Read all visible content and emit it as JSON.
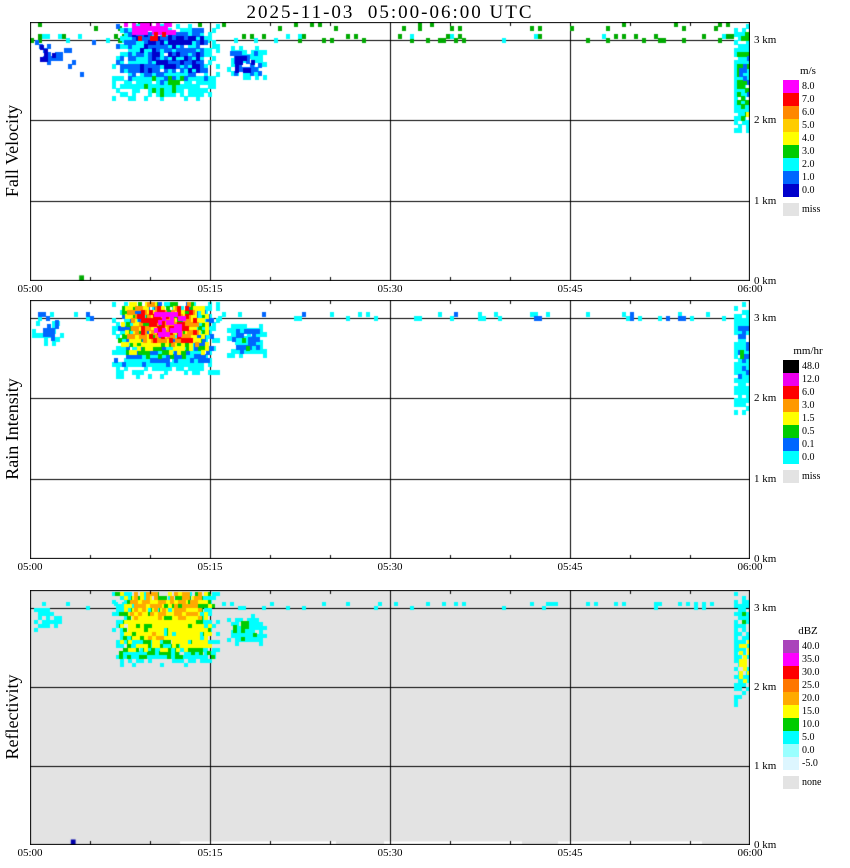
{
  "title": "2025-11-03  05:00-06:00 UTC",
  "chart_data": [
    {
      "type": "heatmap",
      "name": "fall-velocity",
      "ylabel": "Fall Velocity",
      "x_ticks": [
        "05:00",
        "05:15",
        "05:30",
        "05:45",
        "06:00"
      ],
      "x_tick_minutes": [
        0,
        15,
        30,
        45,
        60
      ],
      "x_range_minutes": [
        0,
        60
      ],
      "y_ticks": [
        "0 km",
        "1 km",
        "2 km",
        "3 km"
      ],
      "y_tick_km": [
        0,
        1,
        2,
        3
      ],
      "y_range_km": [
        0,
        3.22
      ],
      "grid": {
        "x_minutes": [
          15,
          30,
          45
        ],
        "y_km": [
          1,
          2,
          3
        ]
      },
      "background": "#FFFFFF",
      "legend": {
        "title": "m/s",
        "entries": [
          {
            "label": "8.0",
            "color": "#FF00FF"
          },
          {
            "label": "7.0",
            "color": "#FF0000"
          },
          {
            "label": "6.0",
            "color": "#FF8800"
          },
          {
            "label": "5.0",
            "color": "#FFCC00"
          },
          {
            "label": "4.0",
            "color": "#FFFF00"
          },
          {
            "label": "3.0",
            "color": "#00CC00"
          },
          {
            "label": "2.0",
            "color": "#00FFFF"
          },
          {
            "label": "1.0",
            "color": "#0066FF"
          },
          {
            "label": "0.0",
            "color": "#0000CC"
          }
        ],
        "missing": {
          "label": "miss",
          "color": "#E3E3E3"
        }
      },
      "features": [
        {
          "kind": "scatter",
          "t0": 0,
          "t1": 60,
          "h0": 2.98,
          "h1": 3.1,
          "color": "#00AA00",
          "density": 0.13
        },
        {
          "kind": "scatter",
          "t0": 0,
          "t1": 60,
          "h0": 3.12,
          "h1": 3.22,
          "color": "#00AA00",
          "density": 0.05
        },
        {
          "kind": "scatter",
          "t0": 0,
          "t1": 60,
          "h0": 2.98,
          "h1": 3.08,
          "color": "#00FFFF",
          "density": 0.04
        },
        {
          "kind": "scatter",
          "t0": 2.5,
          "t1": 6.5,
          "h0": 2.55,
          "h1": 3.0,
          "color": "#0066FF",
          "density": 0.05
        },
        {
          "kind": "fill",
          "t0": 0.4,
          "t1": 2.6,
          "h0": 2.7,
          "h1": 2.98,
          "color": "#0066FF",
          "density": 0.6
        },
        {
          "kind": "fill",
          "t0": 0.8,
          "t1": 2.2,
          "h0": 2.74,
          "h1": 2.92,
          "color": "#0000CC",
          "density": 0.35
        },
        {
          "kind": "fill",
          "t0": 6.8,
          "t1": 15.8,
          "h0": 2.25,
          "h1": 3.22,
          "color": "#00FFFF",
          "density": 0.9
        },
        {
          "kind": "fill",
          "t0": 7.2,
          "t1": 15.2,
          "h0": 2.45,
          "h1": 3.2,
          "color": "#0066FF",
          "density": 0.5
        },
        {
          "kind": "fill",
          "t0": 8.5,
          "t1": 14.5,
          "h0": 2.6,
          "h1": 3.1,
          "color": "#0000CC",
          "density": 0.3
        },
        {
          "kind": "fill",
          "t0": 9.5,
          "t1": 13.5,
          "h0": 2.3,
          "h1": 2.6,
          "color": "#00CC00",
          "density": 0.22
        },
        {
          "kind": "fill",
          "t0": 7.8,
          "t1": 12.6,
          "h0": 3.08,
          "h1": 3.22,
          "color": "#FF00FF",
          "density": 0.8
        },
        {
          "kind": "fill",
          "t0": 8.3,
          "t1": 12.2,
          "h0": 3.0,
          "h1": 3.12,
          "color": "#FF0000",
          "density": 0.3
        },
        {
          "kind": "fill",
          "t0": 16.4,
          "t1": 19.6,
          "h0": 2.52,
          "h1": 2.9,
          "color": "#00FFFF",
          "density": 0.85
        },
        {
          "kind": "fill",
          "t0": 16.7,
          "t1": 19.3,
          "h0": 2.56,
          "h1": 2.86,
          "color": "#0066FF",
          "density": 0.6
        },
        {
          "kind": "fill",
          "t0": 17.1,
          "t1": 18.9,
          "h0": 2.6,
          "h1": 2.8,
          "color": "#0000CC",
          "density": 0.4
        },
        {
          "kind": "fill",
          "t0": 58.7,
          "t1": 60,
          "h0": 1.75,
          "h1": 3.22,
          "color": "#00FFFF",
          "density": 0.85
        },
        {
          "kind": "fill",
          "t0": 58.9,
          "t1": 60,
          "h0": 2.0,
          "h1": 3.1,
          "color": "#00CC00",
          "density": 0.4
        },
        {
          "kind": "fill",
          "t0": 59.1,
          "t1": 60,
          "h0": 2.3,
          "h1": 2.9,
          "color": "#0066FF",
          "density": 0.3
        },
        {
          "kind": "fill",
          "t0": 59.3,
          "t1": 60,
          "h0": 2.0,
          "h1": 2.2,
          "color": "#FFFF00",
          "density": 0.4
        },
        {
          "kind": "rect",
          "t0": 4.1,
          "t1": 4.5,
          "h0": 0.0,
          "h1": 0.07,
          "color": "#00AA00"
        }
      ]
    },
    {
      "type": "heatmap",
      "name": "rain-intensity",
      "ylabel": "Rain Intensity",
      "x_ticks": [
        "05:00",
        "05:15",
        "05:30",
        "05:45",
        "06:00"
      ],
      "x_tick_minutes": [
        0,
        15,
        30,
        45,
        60
      ],
      "x_range_minutes": [
        0,
        60
      ],
      "y_ticks": [
        "0 km",
        "1 km",
        "2 km",
        "3 km"
      ],
      "y_tick_km": [
        0,
        1,
        2,
        3
      ],
      "y_range_km": [
        0,
        3.22
      ],
      "grid": {
        "x_minutes": [
          15,
          30,
          45
        ],
        "y_km": [
          1,
          2,
          3
        ]
      },
      "background": "#FFFFFF",
      "legend": {
        "title": "mm/hr",
        "entries": [
          {
            "label": "48.0",
            "color": "#000000"
          },
          {
            "label": "12.0",
            "color": "#EE00EE"
          },
          {
            "label": "6.0",
            "color": "#FF0000"
          },
          {
            "label": "3.0",
            "color": "#FF9900"
          },
          {
            "label": "1.5",
            "color": "#FFFF00"
          },
          {
            "label": "0.5",
            "color": "#00CC00"
          },
          {
            "label": "0.1",
            "color": "#0066FF"
          },
          {
            "label": "0.0",
            "color": "#00FFFF"
          }
        ],
        "missing": {
          "label": "miss",
          "color": "#E3E3E3"
        }
      },
      "features": [
        {
          "kind": "scatter",
          "t0": 0,
          "t1": 60,
          "h0": 2.98,
          "h1": 3.1,
          "color": "#00FFFF",
          "density": 0.13
        },
        {
          "kind": "scatter",
          "t0": 0,
          "t1": 60,
          "h0": 2.98,
          "h1": 3.08,
          "color": "#0066FF",
          "density": 0.04
        },
        {
          "kind": "fill",
          "t0": 0.2,
          "t1": 2.8,
          "h0": 2.66,
          "h1": 3.02,
          "color": "#00FFFF",
          "density": 0.45
        },
        {
          "kind": "fill",
          "t0": 0.4,
          "t1": 2.5,
          "h0": 2.72,
          "h1": 2.98,
          "color": "#0066FF",
          "density": 0.5
        },
        {
          "kind": "fill",
          "t0": 6.8,
          "t1": 15.8,
          "h0": 2.25,
          "h1": 3.22,
          "color": "#00FFFF",
          "density": 0.9
        },
        {
          "kind": "fill",
          "t0": 7.0,
          "t1": 15.4,
          "h0": 2.4,
          "h1": 3.22,
          "color": "#0066FF",
          "density": 0.55
        },
        {
          "kind": "fill",
          "t0": 7.3,
          "t1": 15.1,
          "h0": 2.5,
          "h1": 3.22,
          "color": "#00CC00",
          "density": 0.55
        },
        {
          "kind": "fill",
          "t0": 7.6,
          "t1": 14.8,
          "h0": 2.55,
          "h1": 3.22,
          "color": "#FFFF00",
          "density": 0.7
        },
        {
          "kind": "fill",
          "t0": 8.1,
          "t1": 14.2,
          "h0": 2.65,
          "h1": 3.2,
          "color": "#FF9900",
          "density": 0.55
        },
        {
          "kind": "fill",
          "t0": 8.6,
          "t1": 13.8,
          "h0": 2.7,
          "h1": 3.17,
          "color": "#FF0000",
          "density": 0.5
        },
        {
          "kind": "fill",
          "t0": 10.3,
          "t1": 13.0,
          "h0": 2.78,
          "h1": 3.08,
          "color": "#FF00FF",
          "density": 0.55
        },
        {
          "kind": "fill",
          "t0": 16.4,
          "t1": 19.6,
          "h0": 2.52,
          "h1": 2.9,
          "color": "#00FFFF",
          "density": 0.85
        },
        {
          "kind": "fill",
          "t0": 16.8,
          "t1": 19.2,
          "h0": 2.56,
          "h1": 2.86,
          "color": "#0066FF",
          "density": 0.5
        },
        {
          "kind": "fill",
          "t0": 17.3,
          "t1": 18.3,
          "h0": 2.6,
          "h1": 2.76,
          "color": "#00CC00",
          "density": 0.3
        },
        {
          "kind": "fill",
          "t0": 58.7,
          "t1": 60,
          "h0": 1.75,
          "h1": 3.22,
          "color": "#00FFFF",
          "density": 0.85
        },
        {
          "kind": "fill",
          "t0": 59.0,
          "t1": 60,
          "h0": 2.2,
          "h1": 3.0,
          "color": "#0066FF",
          "density": 0.4
        },
        {
          "kind": "fill",
          "t0": 59.2,
          "t1": 60,
          "h0": 2.4,
          "h1": 2.8,
          "color": "#00CC00",
          "density": 0.25
        }
      ]
    },
    {
      "type": "heatmap",
      "name": "reflectivity",
      "ylabel": "Reflectivity",
      "x_ticks": [
        "05:00",
        "05:15",
        "05:30",
        "05:45",
        "06:00"
      ],
      "x_tick_minutes": [
        0,
        15,
        30,
        45,
        60
      ],
      "x_range_minutes": [
        0,
        60
      ],
      "y_ticks": [
        "0 km",
        "1 km",
        "2 km",
        "3 km"
      ],
      "y_tick_km": [
        0,
        1,
        2,
        3
      ],
      "y_range_km": [
        0,
        3.22
      ],
      "grid": {
        "x_minutes": [
          15,
          30,
          45
        ],
        "y_km": [
          1,
          2,
          3
        ]
      },
      "background": "#E3E3E3",
      "legend": {
        "title": "dBZ",
        "entries": [
          {
            "label": "40.0",
            "color": "#AA44BB"
          },
          {
            "label": "35.0",
            "color": "#FF00FF"
          },
          {
            "label": "30.0",
            "color": "#FF0000"
          },
          {
            "label": "25.0",
            "color": "#FF7700"
          },
          {
            "label": "20.0",
            "color": "#FFAA00"
          },
          {
            "label": "15.0",
            "color": "#FFFF00"
          },
          {
            "label": "10.0",
            "color": "#00CC00"
          },
          {
            "label": "5.0",
            "color": "#00FFFF"
          },
          {
            "label": "0.0",
            "color": "#99FFFF"
          },
          {
            "label": "-5.0",
            "color": "#DDF6FF"
          }
        ],
        "missing": {
          "label": "none",
          "color": "#E3E3E3"
        }
      },
      "features": [
        {
          "kind": "scatter",
          "t0": 0,
          "t1": 60,
          "h0": 2.98,
          "h1": 3.1,
          "color": "#00FFFF",
          "density": 0.15
        },
        {
          "kind": "fill",
          "t0": 0.3,
          "t1": 2.6,
          "h0": 2.7,
          "h1": 3.0,
          "color": "#00FFFF",
          "density": 0.6
        },
        {
          "kind": "fill",
          "t0": 6.8,
          "t1": 15.8,
          "h0": 2.25,
          "h1": 3.22,
          "color": "#00FFFF",
          "density": 0.9
        },
        {
          "kind": "fill",
          "t0": 7.1,
          "t1": 15.4,
          "h0": 2.35,
          "h1": 3.22,
          "color": "#00CC00",
          "density": 0.6
        },
        {
          "kind": "fill",
          "t0": 7.5,
          "t1": 15.2,
          "h0": 2.45,
          "h1": 3.22,
          "color": "#FFFF00",
          "density": 0.8
        },
        {
          "kind": "fill",
          "t0": 8.0,
          "t1": 14.5,
          "h0": 2.85,
          "h1": 3.22,
          "color": "#FFAA00",
          "density": 0.55
        },
        {
          "kind": "fill",
          "t0": 9.8,
          "t1": 11.2,
          "h0": 2.55,
          "h1": 2.75,
          "color": "#FFAA00",
          "density": 0.35
        },
        {
          "kind": "fill",
          "t0": 16.4,
          "t1": 19.6,
          "h0": 2.52,
          "h1": 2.9,
          "color": "#00FFFF",
          "density": 0.85
        },
        {
          "kind": "fill",
          "t0": 16.9,
          "t1": 19.1,
          "h0": 2.58,
          "h1": 2.85,
          "color": "#00CC00",
          "density": 0.45
        },
        {
          "kind": "fill",
          "t0": 58.7,
          "t1": 60,
          "h0": 1.75,
          "h1": 3.22,
          "color": "#00FFFF",
          "density": 0.85
        },
        {
          "kind": "fill",
          "t0": 59.1,
          "t1": 60,
          "h0": 2.05,
          "h1": 2.7,
          "color": "#FFFF00",
          "density": 0.5
        },
        {
          "kind": "fill",
          "t0": 59.3,
          "t1": 60,
          "h0": 2.75,
          "h1": 3.0,
          "color": "#00CC00",
          "density": 0.3
        },
        {
          "kind": "rect",
          "t0": 3.4,
          "t1": 3.8,
          "h0": 0,
          "h1": 0.07,
          "color": "#0000AA"
        },
        {
          "kind": "rect",
          "t0": 12.5,
          "t1": 25.5,
          "h0": 0,
          "h1": 0.045,
          "color": "#FFFFFF"
        },
        {
          "kind": "rect",
          "t0": 29.5,
          "t1": 41,
          "h0": 0,
          "h1": 0.045,
          "color": "#FFFFFF"
        },
        {
          "kind": "rect",
          "t0": 44,
          "t1": 56,
          "h0": 0,
          "h1": 0.045,
          "color": "#FFFFFF"
        }
      ]
    }
  ]
}
